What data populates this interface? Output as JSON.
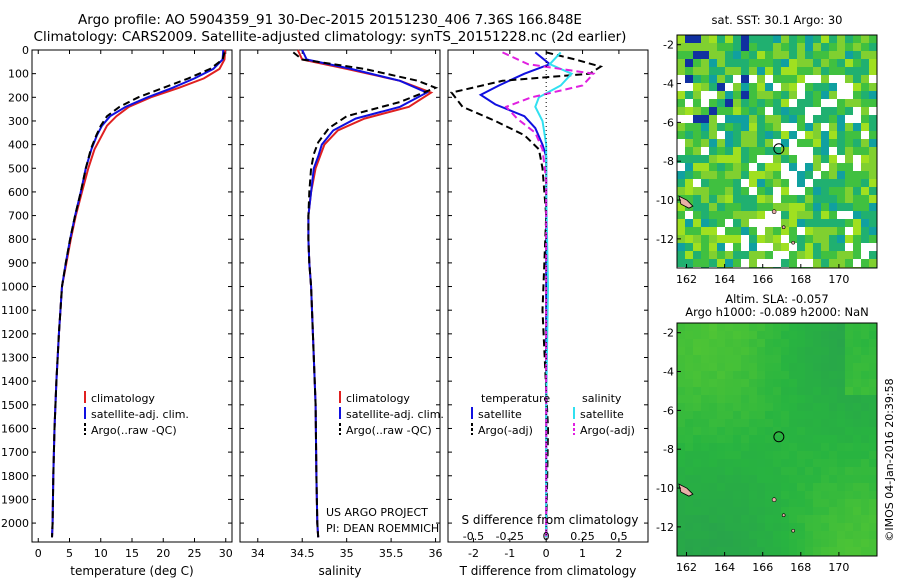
{
  "title_line1": "Argo profile: AO 5904359_91 30-Dec-2015 20151230_406 7.36S 166.848E",
  "title_line2": "Climatology: CARS2009. Satellite-adjusted climatology: synTS_20151228.nc (2d earlier)",
  "timestamp": "©IMOS 04-Jan-2016 20:39:58",
  "project_line1": "US ARGO PROJECT",
  "project_line2": "PI: DEAN ROEMMICH",
  "colors": {
    "climatology": "#e02020",
    "satellite": "#1010e0",
    "argo": "#000000",
    "sal_sat": "#30e0f0",
    "sal_argo": "#e020e0"
  },
  "chart_data": [
    {
      "type": "line",
      "name": "temperature-panel",
      "xlabel": "temperature (deg C)",
      "ylim": [
        2080,
        0
      ],
      "xlim": [
        -1,
        31
      ],
      "xticks": [
        0,
        5,
        10,
        15,
        20,
        25,
        30
      ],
      "yticks": [
        0,
        100,
        200,
        300,
        400,
        500,
        600,
        700,
        800,
        900,
        1000,
        1100,
        1200,
        1300,
        1400,
        1500,
        1600,
        1700,
        1800,
        1900,
        2000
      ],
      "legend": [
        "climatology",
        "satellite-adj. clim.",
        "Argo(..raw -QC)"
      ],
      "series": [
        {
          "name": "climatology",
          "color": "#e02020",
          "dash": false,
          "x": [
            29.9,
            29.8,
            29.0,
            26.5,
            22.5,
            18.0,
            14.5,
            12.5,
            11.0,
            10.2,
            9.0,
            8.0,
            7.0,
            6.0,
            5.2,
            4.5,
            3.8,
            3.3,
            2.9,
            2.6,
            2.4,
            2.3,
            2.2
          ],
          "y": [
            0,
            40,
            80,
            120,
            160,
            200,
            240,
            280,
            320,
            360,
            420,
            500,
            600,
            700,
            800,
            900,
            1000,
            1200,
            1400,
            1600,
            1800,
            2000,
            2060
          ]
        },
        {
          "name": "satellite-adj. clim.",
          "color": "#1010e0",
          "dash": false,
          "x": [
            29.6,
            29.5,
            28.0,
            25.0,
            21.5,
            17.5,
            14.0,
            11.5,
            10.2,
            9.4,
            8.5,
            7.6,
            6.8,
            5.9,
            5.1,
            4.4,
            3.8,
            3.3,
            2.9,
            2.6,
            2.4,
            2.3,
            2.2
          ],
          "y": [
            0,
            40,
            80,
            120,
            160,
            200,
            240,
            280,
            320,
            360,
            420,
            500,
            600,
            700,
            800,
            900,
            1000,
            1200,
            1400,
            1600,
            1800,
            2000,
            2060
          ]
        },
        {
          "name": "Argo(..raw -QC)",
          "color": "#000000",
          "dash": true,
          "x": [
            29.8,
            29.5,
            27.5,
            24.0,
            20.0,
            16.0,
            13.0,
            11.0,
            10.0,
            9.3,
            8.4,
            7.6,
            6.8,
            5.9,
            5.1,
            4.4,
            3.8,
            3.3,
            2.9,
            2.6,
            2.4,
            2.3,
            2.2
          ],
          "y": [
            10,
            40,
            80,
            120,
            160,
            200,
            240,
            280,
            320,
            360,
            420,
            500,
            600,
            700,
            800,
            900,
            1000,
            1200,
            1400,
            1600,
            1800,
            2000,
            2060
          ]
        }
      ]
    },
    {
      "type": "line",
      "name": "salinity-panel",
      "xlabel": "salinity",
      "ylim": [
        2080,
        0
      ],
      "xlim": [
        33.8,
        36.05
      ],
      "xticks": [
        34,
        34.5,
        35,
        35.5,
        36
      ],
      "legend": [
        "climatology",
        "satellite-adj. clim.",
        "Argo(..raw -QC)"
      ],
      "series": [
        {
          "name": "climatology",
          "color": "#e02020",
          "dash": false,
          "x": [
            34.45,
            34.5,
            35.0,
            35.6,
            35.95,
            35.7,
            35.2,
            34.9,
            34.75,
            34.7,
            34.65,
            34.6,
            34.57,
            34.57,
            34.58,
            34.6,
            34.62,
            34.65,
            34.66,
            34.67,
            34.68
          ],
          "y": [
            0,
            40,
            80,
            130,
            180,
            240,
            290,
            340,
            400,
            450,
            500,
            600,
            700,
            800,
            900,
            1000,
            1200,
            1500,
            1800,
            2000,
            2060
          ]
        },
        {
          "name": "satellite-adj. clim.",
          "color": "#1010e0",
          "dash": false,
          "x": [
            34.5,
            34.55,
            35.05,
            35.6,
            35.9,
            35.6,
            35.1,
            34.85,
            34.72,
            34.68,
            34.63,
            34.6,
            34.57,
            34.57,
            34.58,
            34.6,
            34.62,
            34.65,
            34.66,
            34.67,
            34.68
          ],
          "y": [
            0,
            40,
            80,
            130,
            180,
            240,
            290,
            340,
            400,
            450,
            500,
            600,
            700,
            800,
            900,
            1000,
            1200,
            1500,
            1800,
            2000,
            2060
          ]
        },
        {
          "name": "Argo(..raw -QC)",
          "color": "#000000",
          "dash": true,
          "x": [
            34.4,
            34.5,
            35.2,
            35.8,
            36.0,
            35.6,
            35.0,
            34.8,
            34.68,
            34.63,
            34.6,
            34.58,
            34.57,
            34.57,
            34.58,
            34.6,
            34.62,
            34.65,
            34.66,
            34.67,
            34.68
          ],
          "y": [
            10,
            40,
            80,
            130,
            160,
            220,
            280,
            330,
            390,
            440,
            500,
            600,
            700,
            800,
            900,
            1000,
            1200,
            1500,
            1800,
            2000,
            2060
          ]
        }
      ]
    },
    {
      "type": "line",
      "name": "difference-panel",
      "xlabel": "T difference from climatology",
      "toplabel": "S difference from climatology",
      "ylim": [
        2080,
        0
      ],
      "xlim": [
        -2.7,
        2.8
      ],
      "xticks": [
        -2,
        -1,
        0,
        1,
        2
      ],
      "top_ticks_labels": [
        "-0.5",
        "-0.25",
        "0",
        "0.25",
        "0.5"
      ],
      "top_ticks_tvalues": [
        -2,
        -1,
        0,
        1,
        2
      ],
      "legend_t_title": "temperature",
      "legend_s_title": "salinity",
      "legend_t": [
        "satellite",
        "Argo(-adj)"
      ],
      "legend_s": [
        "satellite",
        "Argo(-adj)"
      ],
      "series": [
        {
          "name": "temperature satellite",
          "color": "#1010e0",
          "dash": false,
          "x": [
            -0.3,
            0.1,
            -0.6,
            -1.3,
            -1.8,
            -1.4,
            -0.6,
            -0.3,
            -0.1,
            0,
            0,
            0,
            0
          ],
          "y": [
            10,
            60,
            100,
            150,
            190,
            230,
            280,
            330,
            400,
            450,
            600,
            1000,
            2060
          ]
        },
        {
          "name": "temperature Argo(-adj)",
          "color": "#000000",
          "dash": true,
          "x": [
            0,
            0.8,
            1.5,
            1.2,
            -1.2,
            -2.6,
            -2.3,
            -1.4,
            -0.6,
            -0.2,
            -0.1,
            0,
            -0.1,
            0.05,
            0
          ],
          "y": [
            10,
            40,
            70,
            100,
            130,
            180,
            240,
            300,
            360,
            420,
            500,
            700,
            1100,
            1600,
            2060
          ]
        },
        {
          "name": "salinity satellite",
          "color": "#30e0f0",
          "dash": false,
          "x": [
            0.4,
            0.1,
            0.7,
            0.4,
            -0.2,
            -0.3,
            -0.1,
            0,
            0,
            0.05,
            0,
            0
          ],
          "y": [
            10,
            60,
            100,
            150,
            200,
            240,
            300,
            400,
            600,
            1000,
            1500,
            2060
          ]
        },
        {
          "name": "salinity Argo(-adj)",
          "color": "#e020e0",
          "dash": true,
          "x": [
            -1.2,
            -0.5,
            1.3,
            1.0,
            -0.4,
            -1.1,
            -0.8,
            -0.3,
            -0.1,
            0,
            0,
            0
          ],
          "y": [
            10,
            60,
            100,
            150,
            200,
            240,
            290,
            350,
            420,
            550,
            1000,
            2060
          ]
        }
      ]
    },
    {
      "type": "heatmap",
      "name": "sst-map",
      "title": "sat. SST: 30.1  Argo: 30",
      "xlim": [
        161.5,
        172
      ],
      "ylim": [
        -13.5,
        -1.5
      ],
      "xticks": [
        162,
        164,
        166,
        168,
        170
      ],
      "yticks": [
        -2,
        -4,
        -6,
        -8,
        -10,
        -12
      ],
      "marker": {
        "lon": 166.848,
        "lat": -7.36
      }
    },
    {
      "type": "heatmap",
      "name": "sla-map",
      "title_line1": "Altim. SLA: -0.057",
      "title_line2": "Argo h1000: -0.089 h2000: NaN",
      "xlim": [
        161.5,
        172
      ],
      "ylim": [
        -13.5,
        -1.5
      ],
      "xticks": [
        162,
        164,
        166,
        168,
        170
      ],
      "yticks": [
        -2,
        -4,
        -6,
        -8,
        -10,
        -12
      ],
      "marker": {
        "lon": 166.848,
        "lat": -7.36
      }
    }
  ]
}
